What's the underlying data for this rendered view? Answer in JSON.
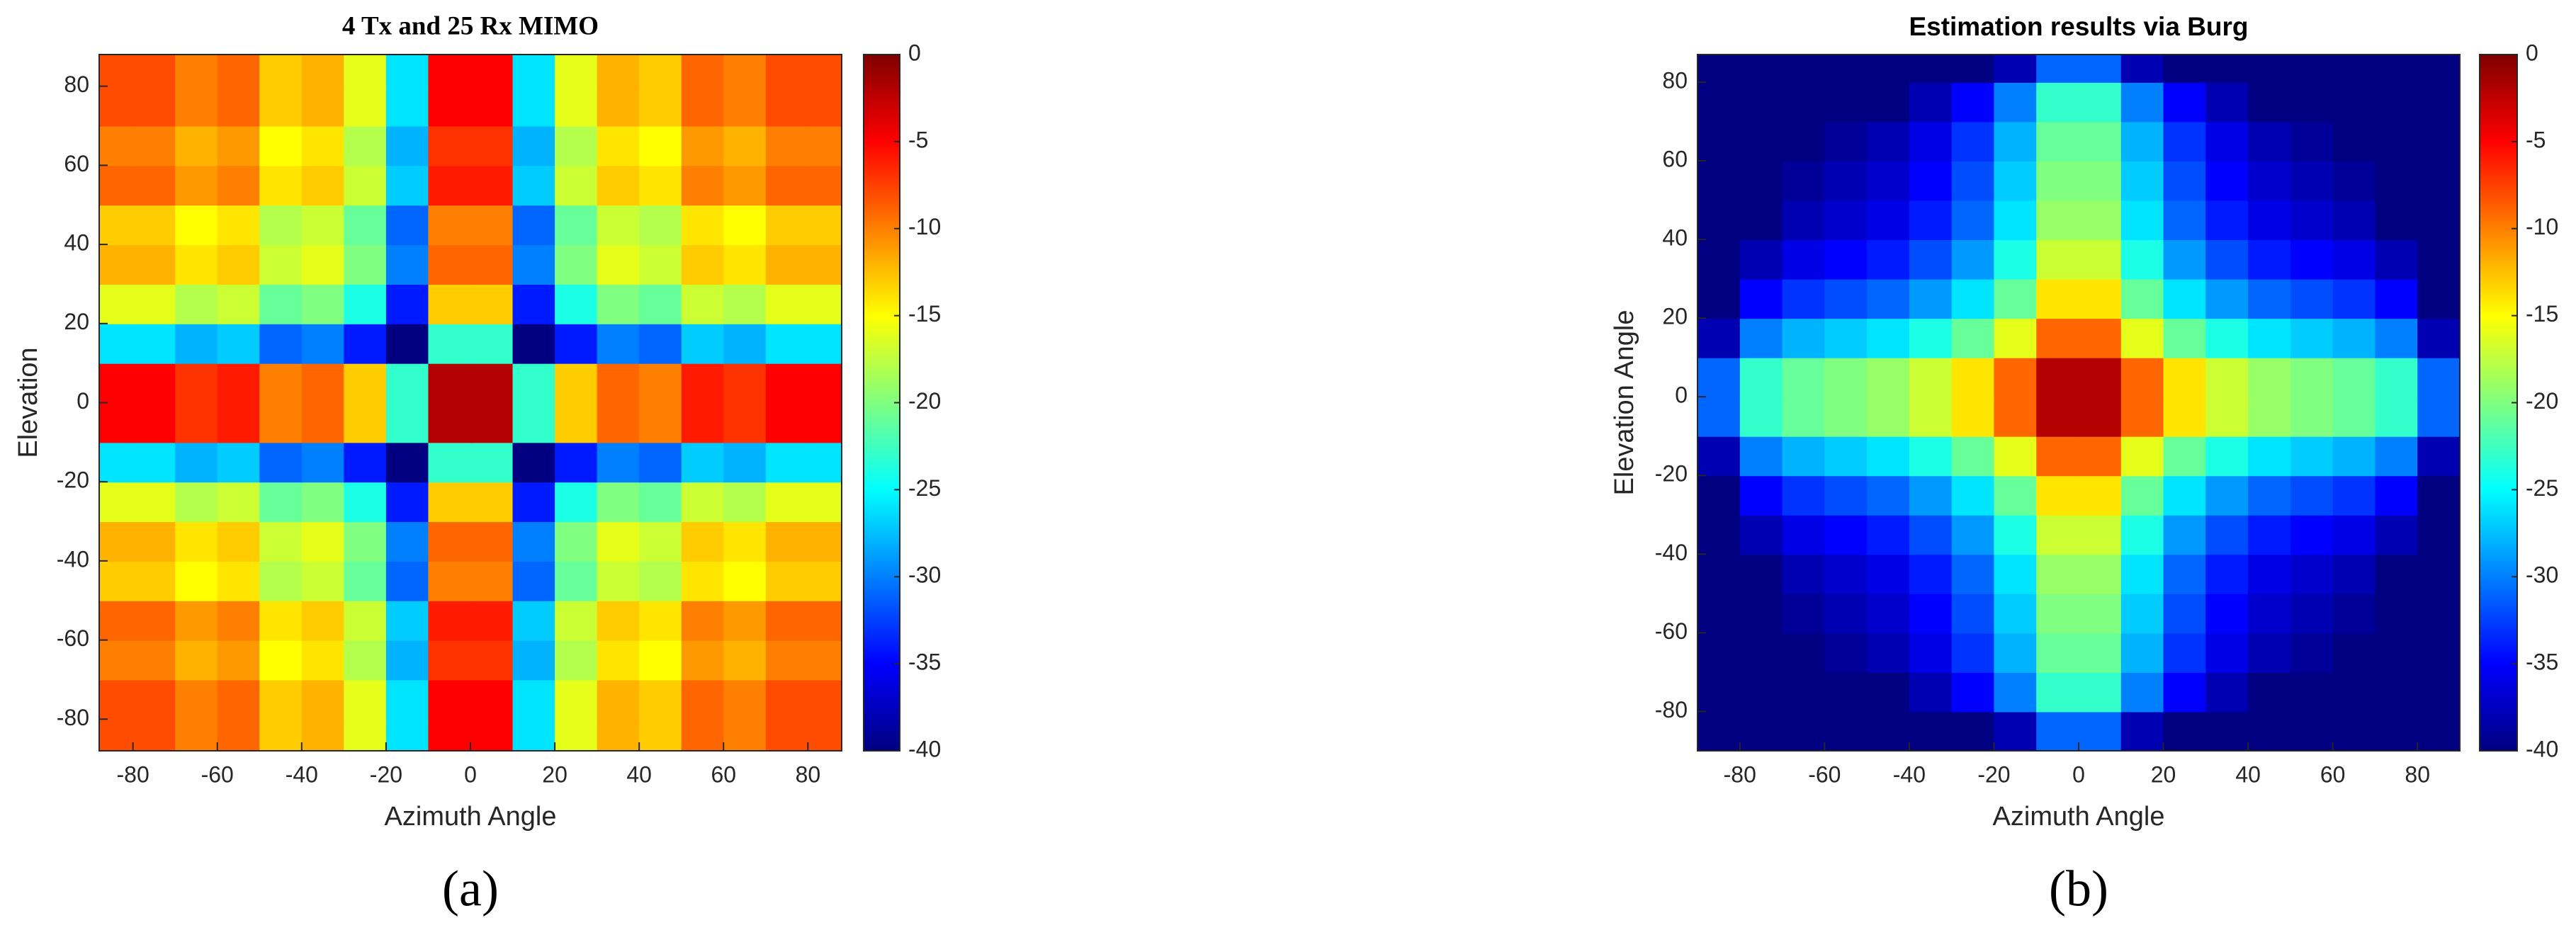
{
  "chart_data": [
    {
      "type": "heatmap",
      "title": "4 Tx and 25 Rx MIMO",
      "xlabel": "Azimuth Angle",
      "ylabel": "Elevation",
      "caption": "(a)",
      "x": [
        -85,
        -75,
        -65,
        -55,
        -45,
        -35,
        -25,
        -15,
        -5,
        5,
        15,
        25,
        35,
        45,
        55,
        65,
        75,
        85
      ],
      "y": [
        -85,
        -75,
        -65,
        -55,
        -45,
        -35,
        -25,
        -15,
        -5,
        5,
        15,
        25,
        35,
        45,
        55,
        65,
        75,
        85
      ],
      "z": [
        [
          -8,
          -8,
          -10,
          -9,
          -13,
          -12,
          -16,
          -26,
          -5,
          -5,
          -26,
          -16,
          -12,
          -13,
          -9,
          -10,
          -8,
          -8
        ],
        [
          -8,
          -8,
          -10,
          -9,
          -13,
          -12,
          -16,
          -26,
          -5,
          -5,
          -26,
          -16,
          -12,
          -13,
          -9,
          -10,
          -8,
          -8
        ],
        [
          -10,
          -10,
          -12,
          -11,
          -15,
          -14,
          -18,
          -28,
          -7,
          -7,
          -28,
          -18,
          -14,
          -15,
          -11,
          -12,
          -10,
          -10
        ],
        [
          -9,
          -9,
          -11,
          -10,
          -14,
          -13,
          -17,
          -27,
          -6,
          -6,
          -27,
          -17,
          -13,
          -14,
          -10,
          -11,
          -9,
          -9
        ],
        [
          -13,
          -13,
          -15,
          -14,
          -18,
          -17,
          -21,
          -31,
          -10,
          -10,
          -31,
          -21,
          -17,
          -18,
          -14,
          -15,
          -13,
          -13
        ],
        [
          -12,
          -12,
          -14,
          -13,
          -17,
          -16,
          -20,
          -30,
          -9,
          -9,
          -30,
          -20,
          -16,
          -17,
          -13,
          -14,
          -12,
          -12
        ],
        [
          -16,
          -16,
          -18,
          -17,
          -21,
          -20,
          -24,
          -34,
          -13,
          -13,
          -34,
          -24,
          -20,
          -21,
          -17,
          -18,
          -16,
          -16
        ],
        [
          -26,
          -26,
          -28,
          -27,
          -31,
          -30,
          -34,
          -40,
          -23,
          -23,
          -40,
          -34,
          -30,
          -31,
          -27,
          -28,
          -26,
          -26
        ],
        [
          -5,
          -5,
          -7,
          -6,
          -10,
          -9,
          -13,
          -23,
          -2,
          -2,
          -23,
          -13,
          -9,
          -10,
          -6,
          -7,
          -5,
          -5
        ],
        [
          -5,
          -5,
          -7,
          -6,
          -10,
          -9,
          -13,
          -23,
          -2,
          -2,
          -23,
          -13,
          -9,
          -10,
          -6,
          -7,
          -5,
          -5
        ],
        [
          -26,
          -26,
          -28,
          -27,
          -31,
          -30,
          -34,
          -40,
          -23,
          -23,
          -40,
          -34,
          -30,
          -31,
          -27,
          -28,
          -26,
          -26
        ],
        [
          -16,
          -16,
          -18,
          -17,
          -21,
          -20,
          -24,
          -34,
          -13,
          -13,
          -34,
          -24,
          -20,
          -21,
          -17,
          -18,
          -16,
          -16
        ],
        [
          -12,
          -12,
          -14,
          -13,
          -17,
          -16,
          -20,
          -30,
          -9,
          -9,
          -30,
          -20,
          -16,
          -17,
          -13,
          -14,
          -12,
          -12
        ],
        [
          -13,
          -13,
          -15,
          -14,
          -18,
          -17,
          -21,
          -31,
          -10,
          -10,
          -31,
          -21,
          -17,
          -18,
          -14,
          -15,
          -13,
          -13
        ],
        [
          -9,
          -9,
          -11,
          -10,
          -14,
          -13,
          -17,
          -27,
          -6,
          -6,
          -27,
          -17,
          -13,
          -14,
          -10,
          -11,
          -9,
          -9
        ],
        [
          -10,
          -10,
          -12,
          -11,
          -15,
          -14,
          -18,
          -28,
          -7,
          -7,
          -28,
          -18,
          -14,
          -15,
          -11,
          -12,
          -10,
          -10
        ],
        [
          -8,
          -8,
          -10,
          -9,
          -13,
          -12,
          -16,
          -26,
          -5,
          -5,
          -26,
          -16,
          -12,
          -13,
          -9,
          -10,
          -8,
          -8
        ],
        [
          -8,
          -8,
          -10,
          -9,
          -13,
          -12,
          -16,
          -26,
          -5,
          -5,
          -26,
          -16,
          -12,
          -13,
          -9,
          -10,
          -8,
          -8
        ]
      ],
      "xlim": [
        -88,
        88
      ],
      "ylim": [
        -88,
        88
      ],
      "xticks": [
        -80,
        -60,
        -40,
        -20,
        0,
        20,
        40,
        60,
        80
      ],
      "yticks": [
        -80,
        -60,
        -40,
        -20,
        0,
        20,
        40,
        60,
        80
      ],
      "clim": [
        -40,
        0
      ],
      "cticks": [
        0,
        -5,
        -10,
        -15,
        -20,
        -25,
        -30,
        -35,
        -40
      ],
      "colormap": "jet"
    },
    {
      "type": "heatmap",
      "title": "Estimation results via Burg",
      "xlabel": "Azimuth Angle",
      "ylabel": "Elevation Angle",
      "caption": "(b)",
      "x": [
        -85,
        -75,
        -65,
        -55,
        -45,
        -35,
        -25,
        -15,
        -5,
        5,
        15,
        25,
        35,
        45,
        55,
        65,
        75,
        85
      ],
      "y": [
        -85,
        -75,
        -65,
        -55,
        -45,
        -35,
        -25,
        -15,
        -5,
        5,
        15,
        25,
        35,
        45,
        55,
        65,
        75,
        85
      ],
      "z": [
        [
          -40,
          -40,
          -40,
          -40,
          -40,
          -40,
          -40,
          -38,
          -31,
          -31,
          -38,
          -40,
          -40,
          -40,
          -40,
          -40,
          -40,
          -40
        ],
        [
          -40,
          -40,
          -40,
          -40,
          -40,
          -38,
          -35,
          -30,
          -23,
          -23,
          -30,
          -35,
          -38,
          -40,
          -40,
          -40,
          -40,
          -40
        ],
        [
          -40,
          -40,
          -40,
          -39,
          -38,
          -36,
          -33,
          -28,
          -21,
          -21,
          -28,
          -33,
          -36,
          -38,
          -39,
          -40,
          -40,
          -40
        ],
        [
          -40,
          -40,
          -39,
          -38,
          -37,
          -35,
          -32,
          -27,
          -20,
          -20,
          -27,
          -32,
          -35,
          -37,
          -38,
          -39,
          -40,
          -40
        ],
        [
          -40,
          -40,
          -38,
          -37,
          -36,
          -34,
          -31,
          -26,
          -19,
          -19,
          -26,
          -31,
          -34,
          -36,
          -37,
          -38,
          -40,
          -40
        ],
        [
          -40,
          -38,
          -36,
          -35,
          -34,
          -32,
          -29,
          -24,
          -17,
          -17,
          -24,
          -29,
          -32,
          -34,
          -35,
          -36,
          -38,
          -40
        ],
        [
          -40,
          -35,
          -33,
          -32,
          -31,
          -29,
          -26,
          -21,
          -14,
          -14,
          -21,
          -26,
          -29,
          -31,
          -32,
          -33,
          -35,
          -40
        ],
        [
          -38,
          -30,
          -28,
          -27,
          -26,
          -24,
          -21,
          -16,
          -9,
          -9,
          -16,
          -21,
          -24,
          -26,
          -27,
          -28,
          -30,
          -38
        ],
        [
          -31,
          -23,
          -21,
          -20,
          -19,
          -17,
          -14,
          -9,
          -2,
          -2,
          -9,
          -14,
          -17,
          -19,
          -20,
          -21,
          -23,
          -31
        ],
        [
          -31,
          -23,
          -21,
          -20,
          -19,
          -17,
          -14,
          -9,
          -2,
          -2,
          -9,
          -14,
          -17,
          -19,
          -20,
          -21,
          -23,
          -31
        ],
        [
          -38,
          -30,
          -28,
          -27,
          -26,
          -24,
          -21,
          -16,
          -9,
          -9,
          -16,
          -21,
          -24,
          -26,
          -27,
          -28,
          -30,
          -38
        ],
        [
          -40,
          -35,
          -33,
          -32,
          -31,
          -29,
          -26,
          -21,
          -14,
          -14,
          -21,
          -26,
          -29,
          -31,
          -32,
          -33,
          -35,
          -40
        ],
        [
          -40,
          -38,
          -36,
          -35,
          -34,
          -32,
          -29,
          -24,
          -17,
          -17,
          -24,
          -29,
          -32,
          -34,
          -35,
          -36,
          -38,
          -40
        ],
        [
          -40,
          -40,
          -38,
          -37,
          -36,
          -34,
          -31,
          -26,
          -19,
          -19,
          -26,
          -31,
          -34,
          -36,
          -37,
          -38,
          -40,
          -40
        ],
        [
          -40,
          -40,
          -39,
          -38,
          -37,
          -35,
          -32,
          -27,
          -20,
          -20,
          -27,
          -32,
          -35,
          -37,
          -38,
          -39,
          -40,
          -40
        ],
        [
          -40,
          -40,
          -40,
          -39,
          -38,
          -36,
          -33,
          -28,
          -21,
          -21,
          -28,
          -33,
          -36,
          -38,
          -39,
          -40,
          -40,
          -40
        ],
        [
          -40,
          -40,
          -40,
          -40,
          -40,
          -38,
          -35,
          -30,
          -23,
          -23,
          -30,
          -35,
          -38,
          -40,
          -40,
          -40,
          -40,
          -40
        ],
        [
          -40,
          -40,
          -40,
          -40,
          -40,
          -40,
          -40,
          -38,
          -31,
          -31,
          -38,
          -40,
          -40,
          -40,
          -40,
          -40,
          -40,
          -40
        ]
      ],
      "xlim": [
        -90,
        90
      ],
      "ylim": [
        -90,
        87
      ],
      "xticks": [
        -80,
        -60,
        -40,
        -20,
        0,
        20,
        40,
        60,
        80
      ],
      "yticks": [
        -80,
        -60,
        -40,
        -20,
        0,
        20,
        40,
        60,
        80
      ],
      "clim": [
        -40,
        0
      ],
      "cticks": [
        0,
        -5,
        -10,
        -15,
        -20,
        -25,
        -30,
        -35,
        -40
      ],
      "colormap": "jet"
    }
  ]
}
